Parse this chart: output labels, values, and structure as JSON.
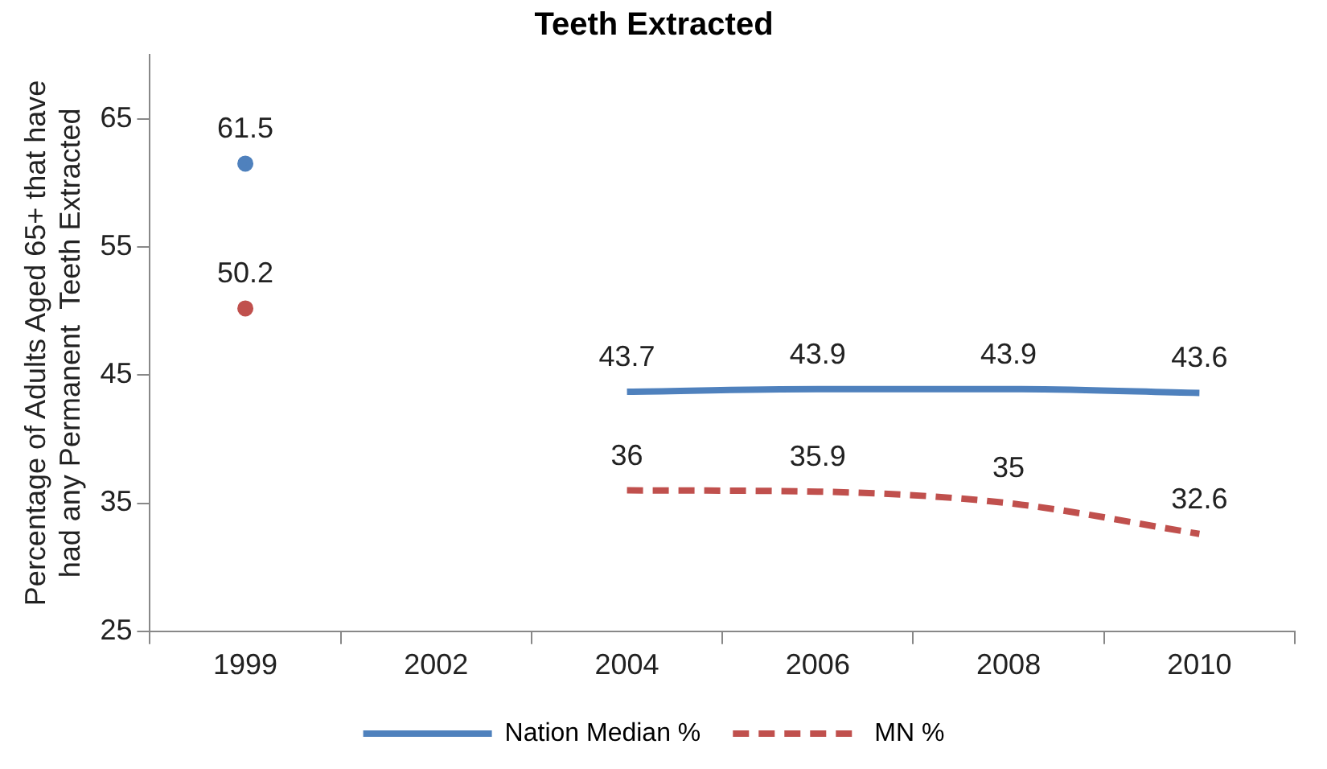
{
  "chart_data": {
    "type": "line",
    "title": "Teeth Extracted",
    "ylabel": "Percentage of Adults Aged 65+ that have\nhad any Permanent  Teeth Extracted",
    "categories": [
      "1999",
      "2002",
      "2004",
      "2006",
      "2008",
      "2010"
    ],
    "series": [
      {
        "name": "Nation Median %",
        "color": "#4f81bd",
        "line_style": "solid",
        "values": [
          61.5,
          null,
          43.7,
          43.9,
          43.9,
          43.6
        ]
      },
      {
        "name": "MN %",
        "color": "#c0504d",
        "line_style": "dashed",
        "values": [
          50.2,
          null,
          36,
          35.9,
          35,
          32.6
        ]
      }
    ],
    "ylim": [
      25,
      70
    ],
    "yticks": [
      25,
      35,
      45,
      55,
      65
    ],
    "grid": false,
    "legend": "bottom",
    "marker": "none",
    "data_labels": true
  }
}
